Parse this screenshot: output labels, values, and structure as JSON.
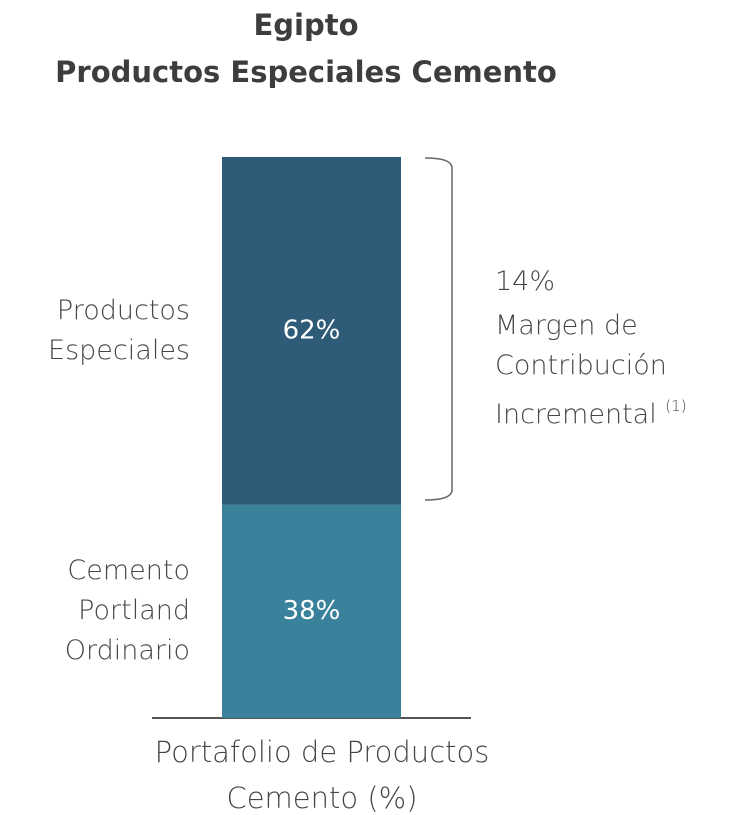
{
  "chart_data": {
    "type": "stacked_bar",
    "title": "Egipto",
    "subtitle": "Productos Especiales Cemento",
    "x_label": "Portafolio de Productos Cemento (%)",
    "ylim": [
      0,
      100
    ],
    "series": [
      {
        "name": "Cemento Portland Ordinario",
        "color": "#3a819c",
        "values": [
          38
        ],
        "value_labels": [
          "38%"
        ]
      },
      {
        "name": "Productos Especiales",
        "color": "#2e5b78",
        "values": [
          62
        ],
        "value_labels": [
          "62%"
        ]
      }
    ],
    "annotation": {
      "value_label": "14%",
      "text": "Margen de Contribución Incremental",
      "note": "(1)"
    }
  }
}
